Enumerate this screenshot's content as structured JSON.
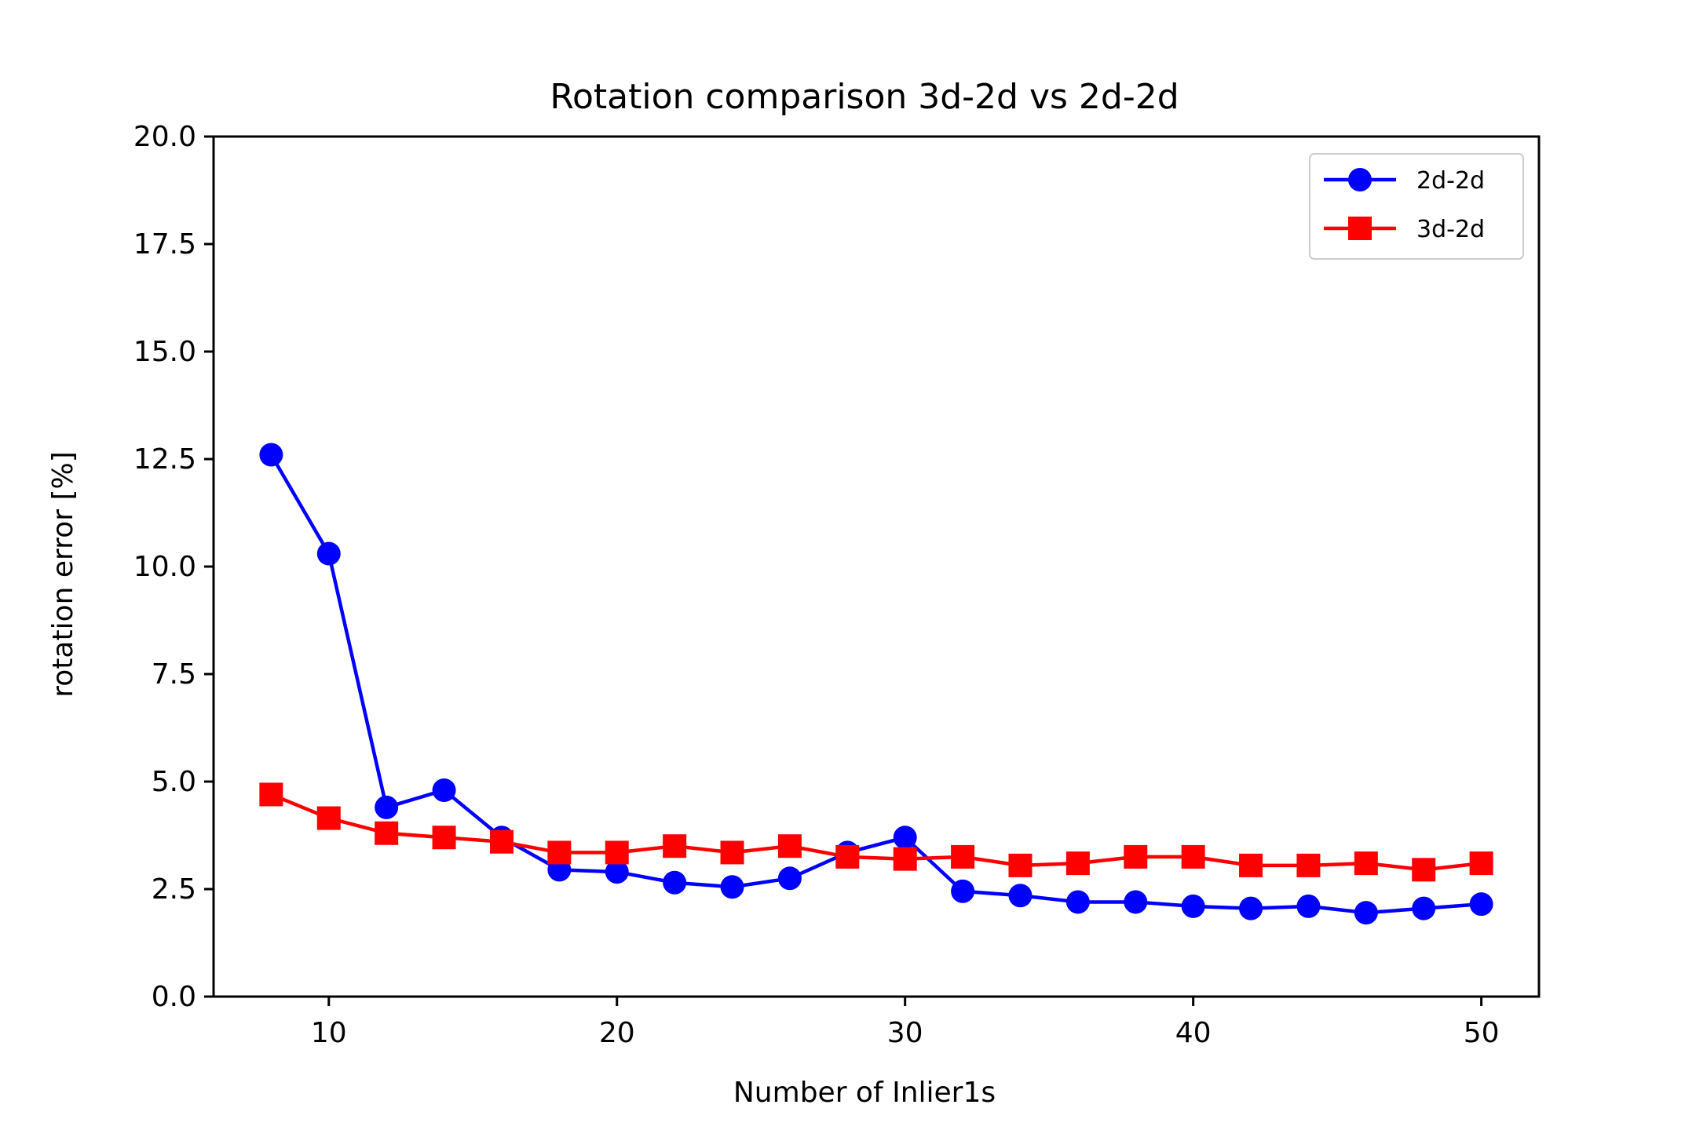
{
  "chart_data": {
    "type": "line",
    "title": "Rotation comparison 3d-2d vs 2d-2d",
    "xlabel": "Number of Inlier1s",
    "ylabel": "rotation error [%]",
    "xlim": [
      6,
      52
    ],
    "ylim": [
      0,
      20
    ],
    "x_ticks": [
      "10",
      "20",
      "30",
      "40",
      "50"
    ],
    "y_ticks": [
      "0.0",
      "2.5",
      "5.0",
      "7.5",
      "10.0",
      "12.5",
      "15.0",
      "17.5",
      "20.0"
    ],
    "grid": false,
    "legend_position": "top-right",
    "x": [
      8,
      10,
      12,
      14,
      16,
      18,
      20,
      22,
      24,
      26,
      28,
      30,
      32,
      34,
      36,
      38,
      40,
      42,
      44,
      46,
      48,
      50
    ],
    "series": [
      {
        "name": "2d-2d",
        "color": "#0000ff",
        "marker": "circle",
        "values": [
          12.6,
          10.3,
          4.4,
          4.8,
          3.7,
          2.95,
          2.9,
          2.65,
          2.55,
          2.75,
          3.35,
          3.7,
          2.45,
          2.35,
          2.2,
          2.2,
          2.1,
          2.05,
          2.1,
          1.95,
          2.05,
          2.15
        ]
      },
      {
        "name": "3d-2d",
        "color": "#ff0000",
        "marker": "square",
        "values": [
          4.7,
          4.15,
          3.8,
          3.7,
          3.6,
          3.35,
          3.35,
          3.5,
          3.35,
          3.5,
          3.25,
          3.2,
          3.25,
          3.05,
          3.1,
          3.25,
          3.25,
          3.05,
          3.05,
          3.1,
          2.95,
          3.1
        ]
      }
    ]
  }
}
